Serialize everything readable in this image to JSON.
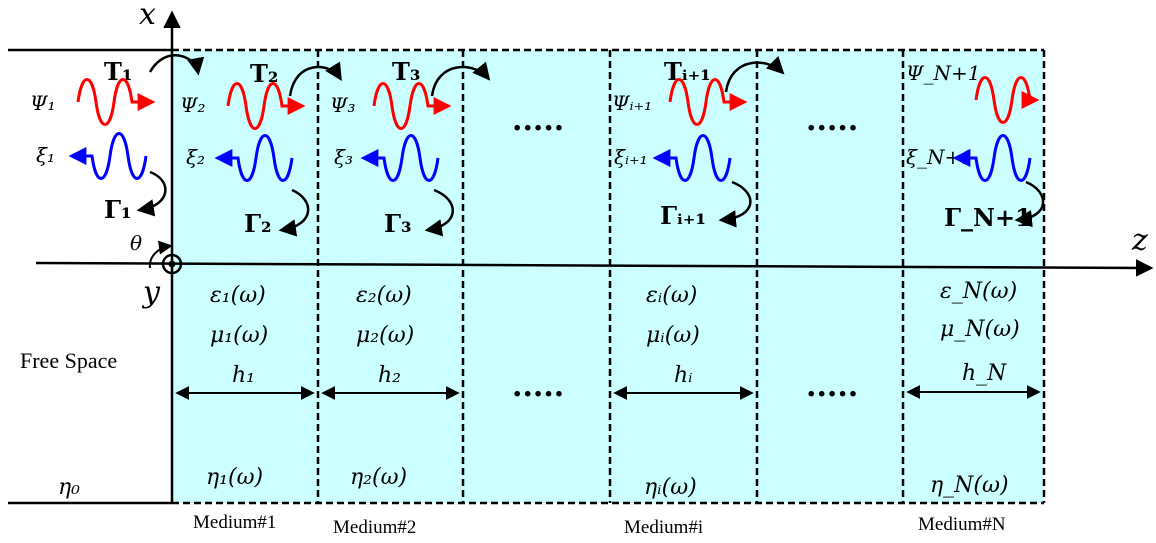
{
  "axes": {
    "x_label": "x",
    "z_label": "z",
    "y_label": "y",
    "theta_label": "θ"
  },
  "free_space": {
    "label": "Free Space",
    "eta": "η₀",
    "psi": "Ψ₁",
    "xi": "ξ₁",
    "transmission": "T₁",
    "reflection": "Γ₁"
  },
  "media": [
    {
      "name": "Medium#1",
      "psi": "Ψ₂",
      "xi": "ξ₂",
      "transmission": "T₂",
      "reflection": "Γ₂",
      "epsilon": "ε₁(ω)",
      "mu": "μ₁(ω)",
      "thickness": "h₁",
      "eta": "η₁(ω)"
    },
    {
      "name": "Medium#2",
      "psi": "Ψ₃",
      "xi": "ξ₃",
      "transmission": "T₃",
      "reflection": "Γ₃",
      "epsilon": "ε₂(ω)",
      "mu": "μ₂(ω)",
      "thickness": "h₂",
      "eta": "η₂(ω)"
    },
    {
      "name": "",
      "ellipsis_top": ".....",
      "ellipsis_bottom": "....."
    },
    {
      "name": "Medium#i",
      "psi": "Ψᵢ₊₁",
      "xi": "ξᵢ₊₁",
      "transmission": "Tᵢ₊₁",
      "reflection": "Γᵢ₊₁",
      "epsilon": "εᵢ(ω)",
      "mu": "μᵢ(ω)",
      "thickness": "hᵢ",
      "eta": "ηᵢ(ω)"
    },
    {
      "name": "",
      "ellipsis_top": ".....",
      "ellipsis_bottom": "....."
    },
    {
      "name": "Medium#N",
      "psi": "Ψ_N+1",
      "xi": "ξ_N+1",
      "reflection": "Γ_N+1",
      "epsilon": "ε_N(ω)",
      "mu": "μ_N(ω)",
      "thickness": "h_N",
      "eta": "η_N(ω)"
    }
  ],
  "colors": {
    "medium_fill": "#ccffff",
    "incident_wave": "#ff0000",
    "reflected_wave": "#0000ff",
    "lines": "#000000"
  }
}
